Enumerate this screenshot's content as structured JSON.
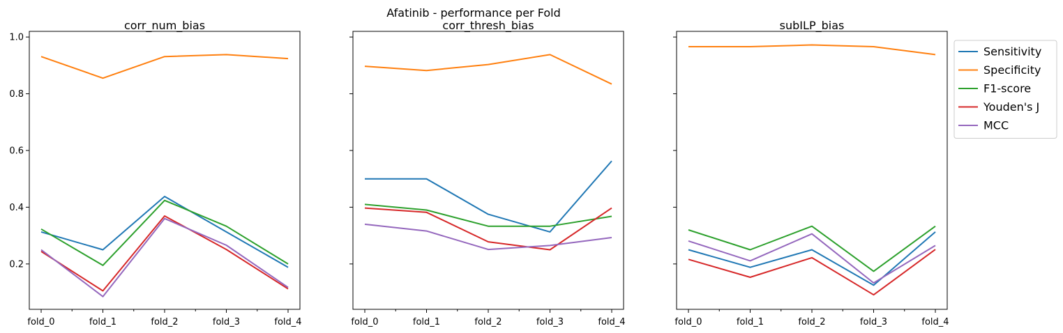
{
  "figure": {
    "suptitle": "Afatinib - performance per Fold"
  },
  "chart_data": [
    {
      "type": "line",
      "title": "corr_num_bias",
      "categories": [
        "fold_0",
        "fold_1",
        "fold_2",
        "fold_3",
        "fold_4"
      ],
      "ylim": [
        0.04,
        1.02
      ],
      "yticks": [
        0.2,
        0.4,
        0.6,
        0.8,
        1.0
      ],
      "series": [
        {
          "name": "Sensitivity",
          "color": "#1f77b4",
          "values": [
            0.313,
            0.25,
            0.438,
            0.313,
            0.188
          ]
        },
        {
          "name": "Specificity",
          "color": "#ff7f0e",
          "values": [
            0.931,
            0.855,
            0.931,
            0.938,
            0.924
          ]
        },
        {
          "name": "F1-score",
          "color": "#2ca02c",
          "values": [
            0.323,
            0.195,
            0.424,
            0.333,
            0.2
          ]
        },
        {
          "name": "Youden's J",
          "color": "#d62728",
          "values": [
            0.244,
            0.105,
            0.369,
            0.251,
            0.112
          ]
        },
        {
          "name": "MCC",
          "color": "#9467bd",
          "values": [
            0.25,
            0.085,
            0.36,
            0.266,
            0.117
          ]
        }
      ]
    },
    {
      "type": "line",
      "title": "corr_thresh_bias",
      "categories": [
        "fold_0",
        "fold_1",
        "fold_2",
        "fold_3",
        "fold_4"
      ],
      "ylim": [
        0.04,
        1.02
      ],
      "yticks": [
        0.2,
        0.4,
        0.6,
        0.8,
        1.0
      ],
      "series": [
        {
          "name": "Sensitivity",
          "color": "#1f77b4",
          "values": [
            0.5,
            0.5,
            0.375,
            0.313,
            0.563
          ]
        },
        {
          "name": "Specificity",
          "color": "#ff7f0e",
          "values": [
            0.897,
            0.882,
            0.903,
            0.938,
            0.834
          ]
        },
        {
          "name": "F1-score",
          "color": "#2ca02c",
          "values": [
            0.41,
            0.39,
            0.333,
            0.333,
            0.368
          ]
        },
        {
          "name": "Youden's J",
          "color": "#d62728",
          "values": [
            0.397,
            0.382,
            0.278,
            0.25,
            0.397
          ]
        },
        {
          "name": "MCC",
          "color": "#9467bd",
          "values": [
            0.34,
            0.316,
            0.251,
            0.265,
            0.293
          ]
        }
      ]
    },
    {
      "type": "line",
      "title": "subILP_bias",
      "categories": [
        "fold_0",
        "fold_1",
        "fold_2",
        "fold_3",
        "fold_4"
      ],
      "ylim": [
        0.04,
        1.02
      ],
      "yticks": [
        0.2,
        0.4,
        0.6,
        0.8,
        1.0
      ],
      "legend": "upper-right-outside",
      "series": [
        {
          "name": "Sensitivity",
          "color": "#1f77b4",
          "values": [
            0.25,
            0.188,
            0.25,
            0.125,
            0.313
          ]
        },
        {
          "name": "Specificity",
          "color": "#ff7f0e",
          "values": [
            0.966,
            0.966,
            0.972,
            0.966,
            0.938
          ]
        },
        {
          "name": "F1-score",
          "color": "#2ca02c",
          "values": [
            0.32,
            0.25,
            0.333,
            0.174,
            0.333
          ]
        },
        {
          "name": "Youden's J",
          "color": "#d62728",
          "values": [
            0.216,
            0.153,
            0.222,
            0.091,
            0.251
          ]
        },
        {
          "name": "MCC",
          "color": "#9467bd",
          "values": [
            0.281,
            0.211,
            0.306,
            0.133,
            0.265
          ]
        }
      ]
    }
  ]
}
